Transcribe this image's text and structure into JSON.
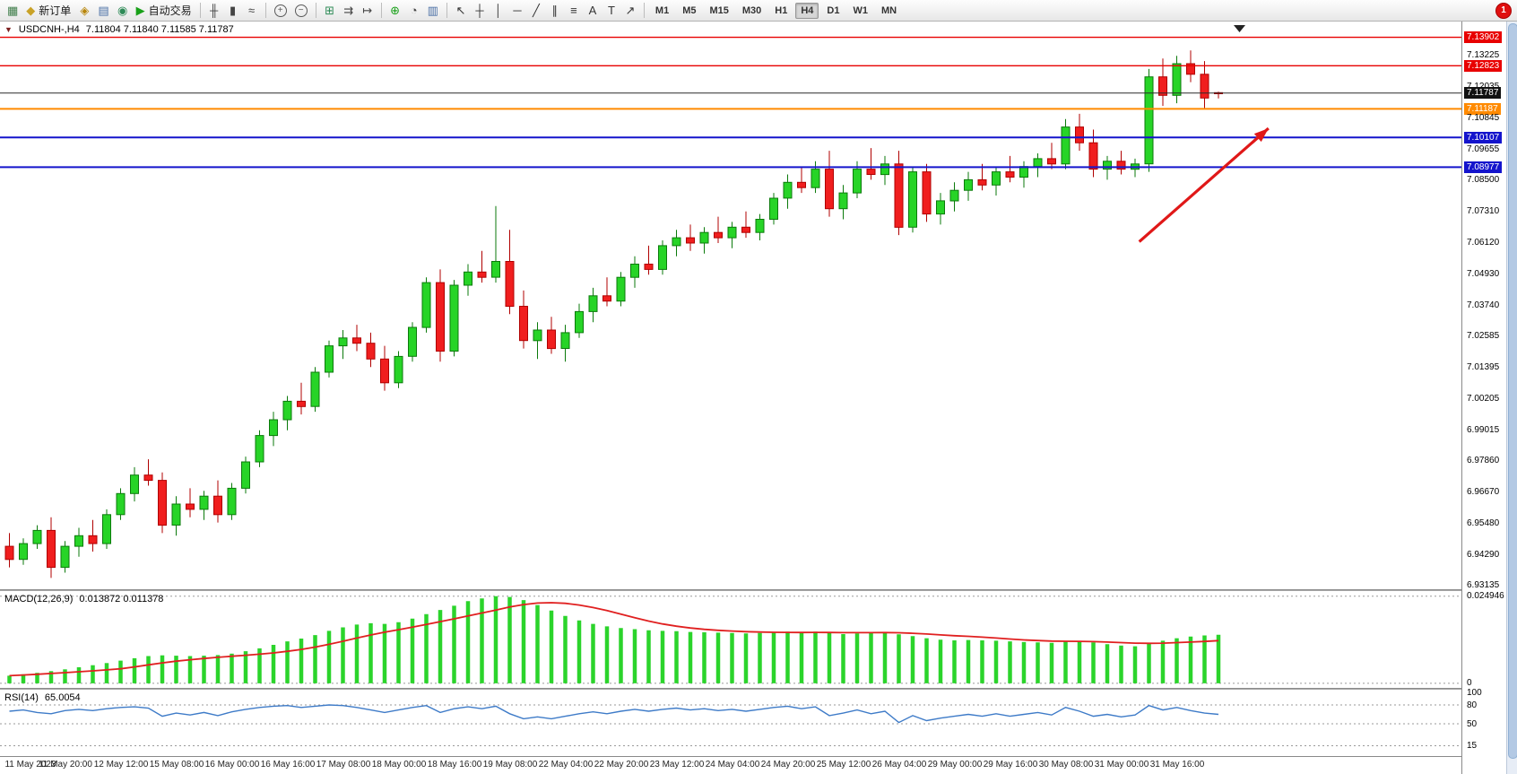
{
  "toolbar": {
    "groups": [
      [
        {
          "name": "new-chart",
          "glyph": "▦",
          "c": "#3f7d4a"
        },
        {
          "name": "new-order",
          "glyph": "◆",
          "c": "#c9a227",
          "label": "新订单"
        },
        {
          "name": "metaeditor",
          "glyph": "◈",
          "c": "#b8860b"
        },
        {
          "name": "profiles",
          "glyph": "▤",
          "c": "#4a6fa5"
        },
        {
          "name": "data-window",
          "glyph": "◉",
          "c": "#2e8b57"
        },
        {
          "name": "autotrading",
          "glyph": "▶",
          "c": "#18a018",
          "label": "自动交易"
        }
      ],
      [
        {
          "name": "ohlc-bars",
          "glyph": "╫",
          "c": "#444"
        },
        {
          "name": "candlestick-mode",
          "glyph": "▮",
          "c": "#444"
        },
        {
          "name": "line-chart-mode",
          "glyph": "≈",
          "c": "#444"
        }
      ],
      [
        {
          "name": "zoom-in",
          "glyph": "+"
        },
        {
          "name": "zoom-out",
          "glyph": "−"
        }
      ],
      [
        {
          "name": "tile-windows",
          "glyph": "⊞",
          "c": "#2e8b57"
        },
        {
          "name": "auto-scroll",
          "glyph": "⇉",
          "c": "#444"
        },
        {
          "name": "chart-shift",
          "glyph": "↦",
          "c": "#444"
        }
      ],
      [
        {
          "name": "indicators",
          "glyph": "⊕",
          "c": "#18a018"
        },
        {
          "name": "periods",
          "glyph": "◔",
          "c": "#444"
        },
        {
          "name": "templates",
          "glyph": "▥",
          "c": "#4a6fa5"
        }
      ],
      [
        {
          "name": "cursor",
          "glyph": "↖",
          "c": "#333"
        },
        {
          "name": "crosshair",
          "glyph": "┼",
          "c": "#333"
        },
        {
          "name": "vertical-line",
          "glyph": "│",
          "c": "#333"
        },
        {
          "name": "horizontal-line",
          "glyph": "─",
          "c": "#333"
        },
        {
          "name": "trendline",
          "glyph": "╱",
          "c": "#333"
        },
        {
          "name": "equidistant-channel",
          "glyph": "∥",
          "c": "#333"
        },
        {
          "name": "fibonacci",
          "glyph": "≡",
          "c": "#333"
        },
        {
          "name": "text",
          "glyph": "A",
          "c": "#333"
        },
        {
          "name": "text-label",
          "glyph": "T",
          "c": "#333"
        },
        {
          "name": "arrows-tool",
          "glyph": "↗",
          "c": "#333"
        }
      ]
    ],
    "timeframes": [
      "M1",
      "M5",
      "M15",
      "M30",
      "H1",
      "H4",
      "D1",
      "W1",
      "MN"
    ],
    "active_timeframe": "H4",
    "notification_badge": "1"
  },
  "chart": {
    "symbol_period": "USDCNH-,H4",
    "ohlc_text": "7.11804 7.11840 7.11585 7.11787"
  },
  "macd": {
    "label": "MACD(12,26,9)",
    "values_text": "0.013872 0.011378"
  },
  "rsi": {
    "label": "RSI(14)",
    "values_text": "65.0054"
  },
  "time_axis": {
    "labels": [
      "11 May 2023",
      "11 May 20:00",
      "12 May 12:00",
      "15 May 08:00",
      "16 May 00:00",
      "16 May 16:00",
      "17 May 08:00",
      "18 May 00:00",
      "18 May 16:00",
      "19 May 08:00",
      "22 May 04:00",
      "22 May 20:00",
      "23 May 12:00",
      "24 May 04:00",
      "24 May 20:00",
      "25 May 12:00",
      "26 May 04:00",
      "29 May 00:00",
      "29 May 16:00",
      "30 May 08:00",
      "31 May 00:00",
      "31 May 16:00"
    ]
  },
  "chart_data": [
    {
      "type": "candlestick",
      "title": "USDCNH-,H4",
      "ylim": [
        6.9297,
        7.145
      ],
      "up_color": "#27d427",
      "down_color": "#f01e1e",
      "candles": [
        [
          6.946,
          6.951,
          6.938,
          6.941
        ],
        [
          6.941,
          6.949,
          6.939,
          6.947
        ],
        [
          6.947,
          6.954,
          6.945,
          6.952
        ],
        [
          6.952,
          6.957,
          6.934,
          6.938
        ],
        [
          6.938,
          6.948,
          6.936,
          6.946
        ],
        [
          6.946,
          6.953,
          6.942,
          6.95
        ],
        [
          6.95,
          6.956,
          6.944,
          6.947
        ],
        [
          6.947,
          6.96,
          6.945,
          6.958
        ],
        [
          6.958,
          6.968,
          6.956,
          6.966
        ],
        [
          6.966,
          6.976,
          6.963,
          6.973
        ],
        [
          6.973,
          6.979,
          6.969,
          6.971
        ],
        [
          6.971,
          6.974,
          6.951,
          6.954
        ],
        [
          6.954,
          6.965,
          6.95,
          6.962
        ],
        [
          6.962,
          6.968,
          6.957,
          6.96
        ],
        [
          6.96,
          6.967,
          6.956,
          6.965
        ],
        [
          6.965,
          6.971,
          6.955,
          6.958
        ],
        [
          6.958,
          6.97,
          6.956,
          6.968
        ],
        [
          6.968,
          6.98,
          6.966,
          6.978
        ],
        [
          6.978,
          6.99,
          6.976,
          6.988
        ],
        [
          6.988,
          6.997,
          6.984,
          6.994
        ],
        [
          6.994,
          7.003,
          6.99,
          7.001
        ],
        [
          7.001,
          7.008,
          6.996,
          6.999
        ],
        [
          6.999,
          7.014,
          6.997,
          7.012
        ],
        [
          7.012,
          7.024,
          7.01,
          7.022
        ],
        [
          7.022,
          7.028,
          7.017,
          7.025
        ],
        [
          7.025,
          7.03,
          7.02,
          7.023
        ],
        [
          7.023,
          7.027,
          7.014,
          7.017
        ],
        [
          7.017,
          7.022,
          7.005,
          7.008
        ],
        [
          7.008,
          7.02,
          7.006,
          7.018
        ],
        [
          7.018,
          7.031,
          7.016,
          7.029
        ],
        [
          7.029,
          7.048,
          7.027,
          7.046
        ],
        [
          7.046,
          7.051,
          7.016,
          7.02
        ],
        [
          7.02,
          7.047,
          7.018,
          7.045
        ],
        [
          7.045,
          7.053,
          7.041,
          7.05
        ],
        [
          7.05,
          7.058,
          7.046,
          7.048
        ],
        [
          7.048,
          7.075,
          7.046,
          7.054
        ],
        [
          7.054,
          7.066,
          7.034,
          7.037
        ],
        [
          7.037,
          7.043,
          7.021,
          7.024
        ],
        [
          7.024,
          7.031,
          7.017,
          7.028
        ],
        [
          7.028,
          7.033,
          7.019,
          7.021
        ],
        [
          7.021,
          7.03,
          7.016,
          7.027
        ],
        [
          7.027,
          7.038,
          7.025,
          7.035
        ],
        [
          7.035,
          7.044,
          7.031,
          7.041
        ],
        [
          7.041,
          7.048,
          7.037,
          7.039
        ],
        [
          7.039,
          7.05,
          7.037,
          7.048
        ],
        [
          7.048,
          7.056,
          7.044,
          7.053
        ],
        [
          7.053,
          7.06,
          7.049,
          7.051
        ],
        [
          7.051,
          7.062,
          7.049,
          7.06
        ],
        [
          7.06,
          7.066,
          7.056,
          7.063
        ],
        [
          7.063,
          7.068,
          7.058,
          7.061
        ],
        [
          7.061,
          7.067,
          7.057,
          7.065
        ],
        [
          7.065,
          7.071,
          7.061,
          7.063
        ],
        [
          7.063,
          7.069,
          7.059,
          7.067
        ],
        [
          7.067,
          7.073,
          7.063,
          7.065
        ],
        [
          7.065,
          7.072,
          7.062,
          7.07
        ],
        [
          7.07,
          7.08,
          7.068,
          7.078
        ],
        [
          7.078,
          7.087,
          7.074,
          7.084
        ],
        [
          7.084,
          7.09,
          7.08,
          7.082
        ],
        [
          7.082,
          7.092,
          7.08,
          7.089
        ],
        [
          7.089,
          7.096,
          7.071,
          7.074
        ],
        [
          7.074,
          7.083,
          7.07,
          7.08
        ],
        [
          7.08,
          7.092,
          7.078,
          7.089
        ],
        [
          7.089,
          7.097,
          7.085,
          7.087
        ],
        [
          7.087,
          7.094,
          7.083,
          7.091
        ],
        [
          7.091,
          7.096,
          7.064,
          7.067
        ],
        [
          7.067,
          7.09,
          7.065,
          7.088
        ],
        [
          7.088,
          7.091,
          7.069,
          7.072
        ],
        [
          7.072,
          7.08,
          7.068,
          7.077
        ],
        [
          7.077,
          7.084,
          7.073,
          7.081
        ],
        [
          7.081,
          7.088,
          7.077,
          7.085
        ],
        [
          7.085,
          7.091,
          7.081,
          7.083
        ],
        [
          7.083,
          7.09,
          7.079,
          7.088
        ],
        [
          7.088,
          7.094,
          7.084,
          7.086
        ],
        [
          7.086,
          7.092,
          7.082,
          7.09
        ],
        [
          7.09,
          7.095,
          7.086,
          7.093
        ],
        [
          7.093,
          7.099,
          7.089,
          7.091
        ],
        [
          7.091,
          7.108,
          7.089,
          7.105
        ],
        [
          7.105,
          7.11,
          7.096,
          7.099
        ],
        [
          7.099,
          7.104,
          7.086,
          7.089
        ],
        [
          7.089,
          7.094,
          7.085,
          7.092
        ],
        [
          7.092,
          7.096,
          7.087,
          7.089
        ],
        [
          7.089,
          7.093,
          7.086,
          7.091
        ],
        [
          7.091,
          7.127,
          7.088,
          7.124
        ],
        [
          7.124,
          7.131,
          7.113,
          7.117
        ],
        [
          7.117,
          7.132,
          7.114,
          7.129
        ],
        [
          7.129,
          7.134,
          7.122,
          7.125
        ],
        [
          7.125,
          7.13,
          7.112,
          7.116
        ],
        [
          7.11804,
          7.1184,
          7.11585,
          7.11787
        ]
      ],
      "hlines": [
        {
          "price": 7.13902,
          "color": "#e80000",
          "w": 1.4
        },
        {
          "price": 7.12823,
          "color": "#e80000",
          "w": 1.4
        },
        {
          "price": 7.11787,
          "color": "#2a2a2a",
          "w": 1
        },
        {
          "price": 7.11187,
          "color": "#ff8a00",
          "w": 2
        },
        {
          "price": 7.10107,
          "color": "#1414cc",
          "w": 2
        },
        {
          "price": 7.08977,
          "color": "#1414cc",
          "w": 2
        }
      ],
      "axis_labels": [
        {
          "text": "7.13902",
          "style": "red"
        },
        {
          "text": "7.13225",
          "style": "plain"
        },
        {
          "text": "7.12823",
          "style": "red"
        },
        {
          "text": "7.12035",
          "style": "plain"
        },
        {
          "text": "7.11787",
          "style": "black"
        },
        {
          "text": "7.11187",
          "style": "orange"
        },
        {
          "text": "7.10845",
          "style": "plain"
        },
        {
          "text": "7.10107",
          "style": "blue"
        },
        {
          "text": "7.09655",
          "style": "plain"
        },
        {
          "text": "7.08977",
          "style": "blue"
        },
        {
          "text": "7.08500",
          "style": "plain"
        },
        {
          "text": "7.07310",
          "style": "plain"
        },
        {
          "text": "7.06120",
          "style": "plain"
        },
        {
          "text": "7.04930",
          "style": "plain"
        },
        {
          "text": "7.03740",
          "style": "plain"
        },
        {
          "text": "7.02585",
          "style": "plain"
        },
        {
          "text": "7.01395",
          "style": "plain"
        },
        {
          "text": "7.00205",
          "style": "plain"
        },
        {
          "text": "6.99015",
          "style": "plain"
        },
        {
          "text": "6.97860",
          "style": "plain"
        },
        {
          "text": "6.96670",
          "style": "plain"
        },
        {
          "text": "6.95480",
          "style": "plain"
        },
        {
          "text": "6.94290",
          "style": "plain"
        },
        {
          "text": "6.93135",
          "style": "plain"
        }
      ],
      "arrow": {
        "i1": 81.3,
        "p1": 7.0615,
        "i2": 90.6,
        "p2": 7.1045,
        "color": "#e01818"
      }
    },
    {
      "type": "bar",
      "title": "MACD(12,26,9)",
      "current_values": [
        0.013872,
        0.011378
      ],
      "ylim": [
        -0.0013,
        0.0264
      ],
      "bar_color": "#2bd42b",
      "signal_color": "#e02020",
      "levels": [
        0.024946,
        0
      ],
      "axis_labels": [
        {
          "text": "0.024946",
          "v": 0.024946
        },
        {
          "text": "0",
          "v": 0
        }
      ],
      "values": [
        0.0022,
        0.0026,
        0.003,
        0.0035,
        0.004,
        0.0046,
        0.0052,
        0.0058,
        0.0065,
        0.0072,
        0.0078,
        0.008,
        0.0079,
        0.0078,
        0.0079,
        0.0081,
        0.0085,
        0.0092,
        0.01,
        0.011,
        0.012,
        0.0128,
        0.0138,
        0.015,
        0.016,
        0.0168,
        0.0172,
        0.017,
        0.0175,
        0.0185,
        0.0198,
        0.021,
        0.0222,
        0.0235,
        0.0243,
        0.0249,
        0.0247,
        0.0238,
        0.0224,
        0.0208,
        0.0193,
        0.018,
        0.017,
        0.0163,
        0.0158,
        0.0155,
        0.0152,
        0.015,
        0.0149,
        0.0147,
        0.0146,
        0.0145,
        0.0144,
        0.0143,
        0.0144,
        0.0146,
        0.0148,
        0.0147,
        0.0148,
        0.0144,
        0.0141,
        0.0143,
        0.0145,
        0.0146,
        0.014,
        0.0135,
        0.0129,
        0.0125,
        0.0123,
        0.0124,
        0.0123,
        0.0122,
        0.012,
        0.0118,
        0.0117,
        0.0116,
        0.012,
        0.0121,
        0.0117,
        0.0112,
        0.0108,
        0.0106,
        0.0113,
        0.0122,
        0.0129,
        0.0134,
        0.0137,
        0.0139
      ]
    },
    {
      "type": "line",
      "title": "RSI(14)",
      "current_value": 65.0054,
      "ylim": [
        -1.4,
        104.3
      ],
      "line_color": "#3e7bc8",
      "levels": [
        80,
        50,
        15
      ],
      "axis_labels": [
        {
          "text": "100",
          "v": 100
        },
        {
          "text": "80",
          "v": 80
        },
        {
          "text": "50",
          "v": 50
        },
        {
          "text": "15",
          "v": 15
        }
      ],
      "values": [
        70,
        72,
        68,
        66,
        71,
        73,
        71,
        74,
        76,
        77,
        75,
        62,
        67,
        64,
        68,
        63,
        69,
        73,
        76,
        78,
        79,
        76,
        78,
        80,
        79,
        76,
        72,
        68,
        72,
        76,
        79,
        68,
        74,
        77,
        74,
        78,
        66,
        58,
        61,
        58,
        62,
        66,
        69,
        66,
        70,
        73,
        70,
        73,
        75,
        72,
        74,
        71,
        73,
        70,
        73,
        76,
        78,
        74,
        77,
        63,
        67,
        72,
        66,
        70,
        52,
        63,
        55,
        59,
        62,
        65,
        62,
        66,
        62,
        65,
        68,
        64,
        76,
        70,
        62,
        65,
        61,
        64,
        79,
        72,
        76,
        71,
        67,
        65.0054
      ]
    }
  ]
}
